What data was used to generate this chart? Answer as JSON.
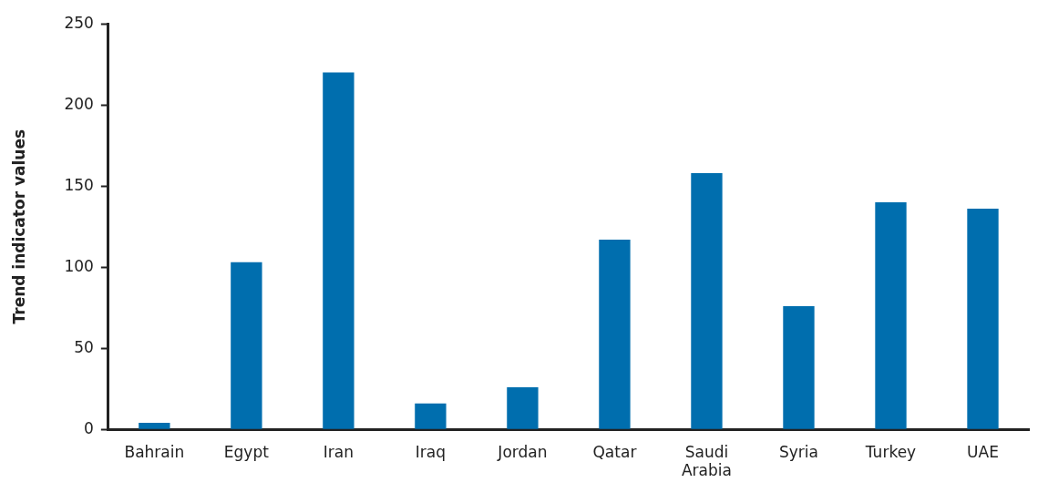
{
  "chart_data": {
    "type": "bar",
    "ylabel": "Trend indicator values",
    "categories": [
      "Bahrain",
      "Egypt",
      "Iran",
      "Iraq",
      "Jordan",
      "Qatar",
      "Saudi Arabia",
      "Syria",
      "Turkey",
      "UAE"
    ],
    "values": [
      4,
      103,
      220,
      16,
      26,
      117,
      158,
      76,
      140,
      136
    ],
    "color": "#006eae",
    "ylim": [
      0,
      250
    ],
    "yticks": [
      0,
      50,
      100,
      150,
      200,
      250
    ],
    "grid": false,
    "legend": false
  }
}
